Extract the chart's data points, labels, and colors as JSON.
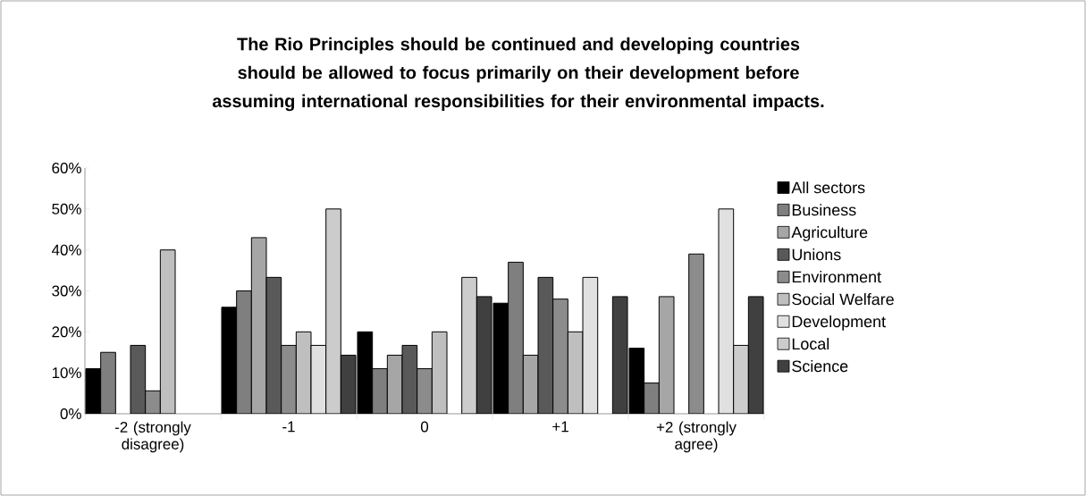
{
  "chart_data": {
    "type": "bar",
    "title": "The Rio Principles should be continued and developing countries should be allowed to focus primarily on their development before assuming international responsibilities for their environmental impacts.",
    "categories": [
      "-2 (strongly disagree)",
      "-1",
      "0",
      "+1",
      "+2 (strongly agree)"
    ],
    "series": [
      {
        "name": "All sectors",
        "color": "#000000",
        "values": [
          11,
          26,
          20,
          27,
          16
        ]
      },
      {
        "name": "Business",
        "color": "#7f7f7f",
        "values": [
          15,
          30,
          11,
          37,
          7.5
        ]
      },
      {
        "name": "Agriculture",
        "color": "#a6a6a6",
        "values": [
          null,
          43,
          14.3,
          14.3,
          28.6
        ]
      },
      {
        "name": "Unions",
        "color": "#595959",
        "values": [
          16.7,
          33.3,
          16.7,
          33.3,
          null
        ]
      },
      {
        "name": "Environment",
        "color": "#8c8c8c",
        "values": [
          5.6,
          16.7,
          11,
          28,
          39
        ]
      },
      {
        "name": "Social Welfare",
        "color": "#bfbfbf",
        "values": [
          40,
          20,
          20,
          20,
          null
        ]
      },
      {
        "name": "Development",
        "color": "#e0e0e0",
        "values": [
          null,
          16.7,
          null,
          33.3,
          50
        ]
      },
      {
        "name": "Local",
        "color": "#cccccc",
        "values": [
          null,
          50,
          33.3,
          null,
          16.7
        ]
      },
      {
        "name": "Science",
        "color": "#404040",
        "values": [
          null,
          14.3,
          28.6,
          28.6,
          28.6
        ]
      }
    ],
    "ylim": [
      0,
      60
    ],
    "yticks": [
      {
        "value": 0,
        "label": "0%"
      },
      {
        "value": 10,
        "label": "10%"
      },
      {
        "value": 20,
        "label": "20%"
      },
      {
        "value": 30,
        "label": "30%"
      },
      {
        "value": 40,
        "label": "40%"
      },
      {
        "value": 50,
        "label": "50%"
      },
      {
        "value": 60,
        "label": "60%"
      }
    ],
    "grid": false,
    "legend": "right"
  }
}
